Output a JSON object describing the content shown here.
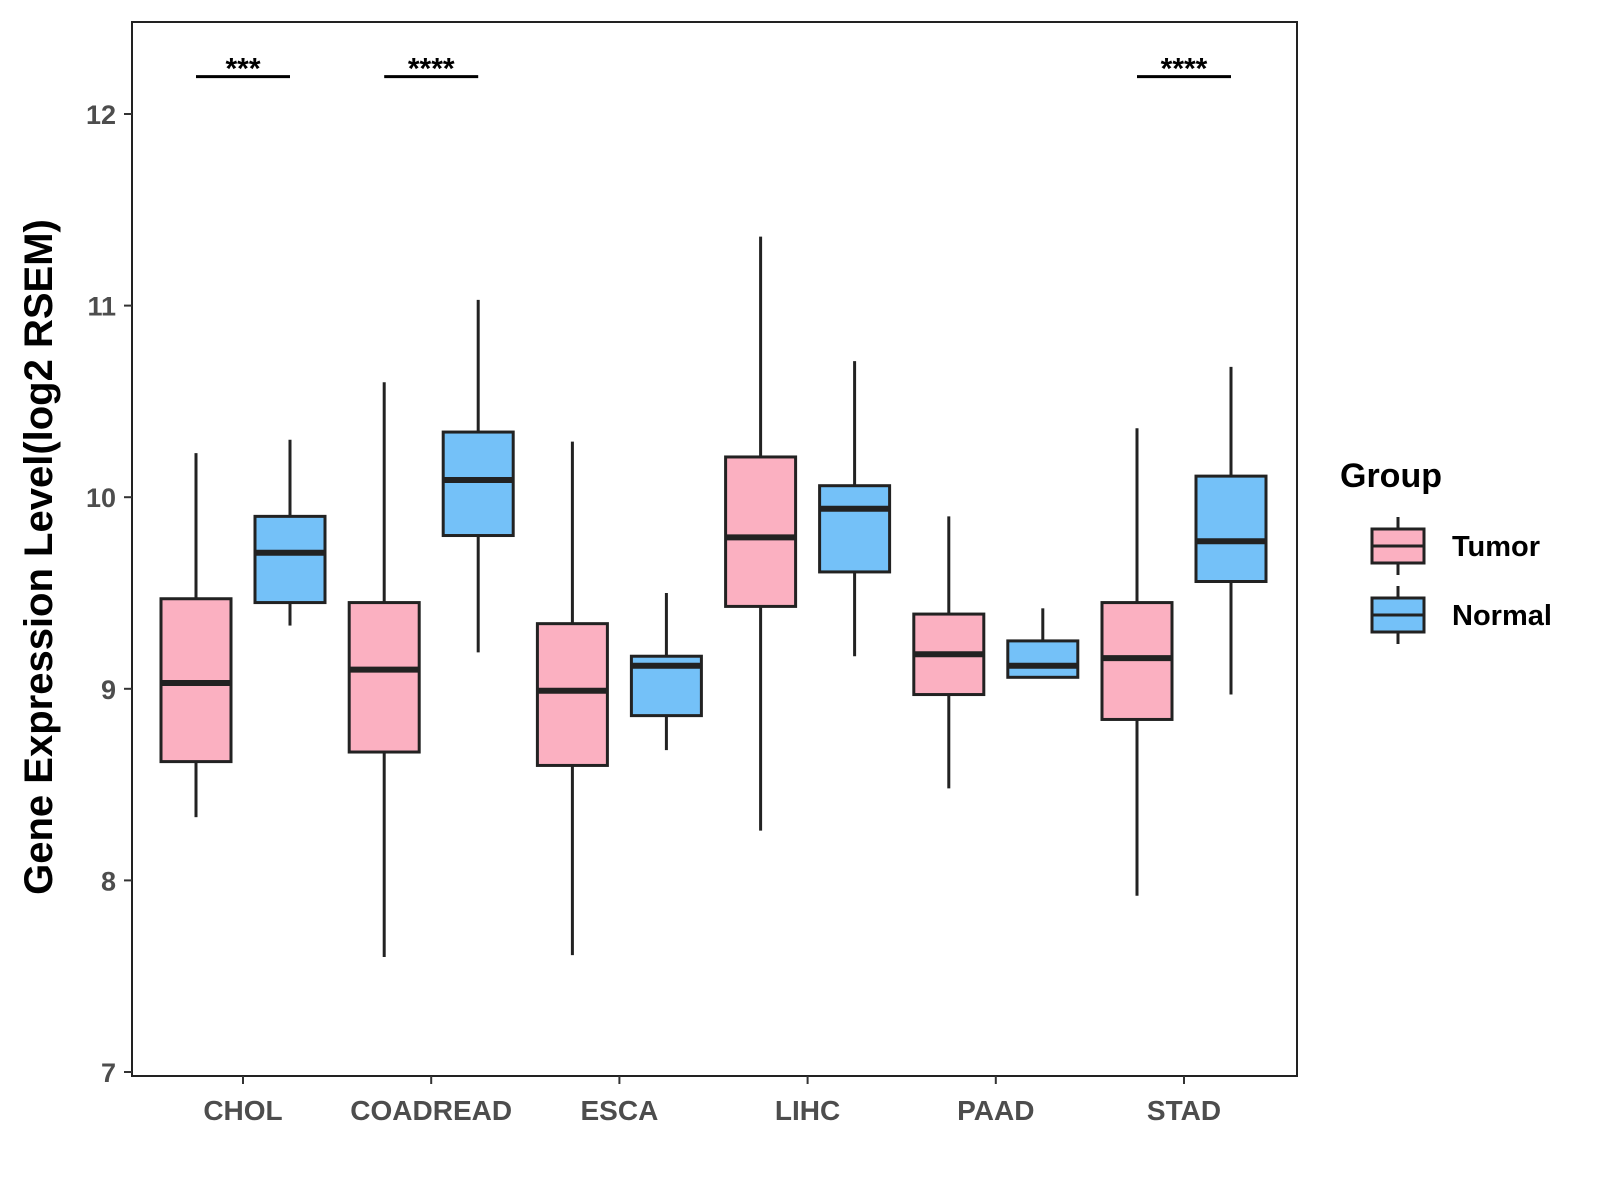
{
  "chart_data": {
    "type": "boxplot",
    "title": "",
    "xlabel": "",
    "ylabel": "Gene Expression Level(log2 RSEM)",
    "ylim": [
      7,
      12.5
    ],
    "yticks": [
      7,
      8,
      9,
      10,
      11,
      12
    ],
    "grid": false,
    "legend": {
      "title": "Group",
      "position": "right",
      "entries": [
        "Tumor",
        "Normal"
      ]
    },
    "categories": [
      "CHOL",
      "COADREAD",
      "ESCA",
      "LIHC",
      "PAAD",
      "STAD"
    ],
    "series": [
      {
        "name": "Tumor",
        "color": "#FBB0C1",
        "boxes": [
          {
            "min": 8.33,
            "q1": 8.62,
            "median": 9.03,
            "q3": 9.47,
            "max": 10.23
          },
          {
            "min": 7.6,
            "q1": 8.67,
            "median": 9.1,
            "q3": 9.45,
            "max": 10.6
          },
          {
            "min": 7.61,
            "q1": 8.6,
            "median": 8.99,
            "q3": 9.34,
            "max": 10.29
          },
          {
            "min": 8.26,
            "q1": 9.43,
            "median": 9.79,
            "q3": 10.21,
            "max": 11.36
          },
          {
            "min": 8.48,
            "q1": 8.97,
            "median": 9.18,
            "q3": 9.39,
            "max": 9.9
          },
          {
            "min": 7.92,
            "q1": 8.84,
            "median": 9.16,
            "q3": 9.45,
            "max": 10.36
          }
        ]
      },
      {
        "name": "Normal",
        "color": "#74C1F8",
        "boxes": [
          {
            "min": 9.33,
            "q1": 9.45,
            "median": 9.71,
            "q3": 9.9,
            "max": 10.3
          },
          {
            "min": 9.19,
            "q1": 9.8,
            "median": 10.09,
            "q3": 10.34,
            "max": 11.03
          },
          {
            "min": 8.68,
            "q1": 8.86,
            "median": 9.12,
            "q3": 9.17,
            "max": 9.5
          },
          {
            "min": 9.17,
            "q1": 9.61,
            "median": 9.94,
            "q3": 10.06,
            "max": 10.71
          },
          {
            "min": 9.06,
            "q1": 9.06,
            "median": 9.12,
            "q3": 9.25,
            "max": 9.42
          },
          {
            "min": 8.97,
            "q1": 9.56,
            "median": 9.77,
            "q3": 10.11,
            "max": 10.68
          }
        ]
      }
    ],
    "annotations": [
      {
        "category": "CHOL",
        "label": "***",
        "y": 12.2
      },
      {
        "category": "COADREAD",
        "label": "****",
        "y": 12.2
      },
      {
        "category": "STAD",
        "label": "****",
        "y": 12.2
      }
    ]
  }
}
